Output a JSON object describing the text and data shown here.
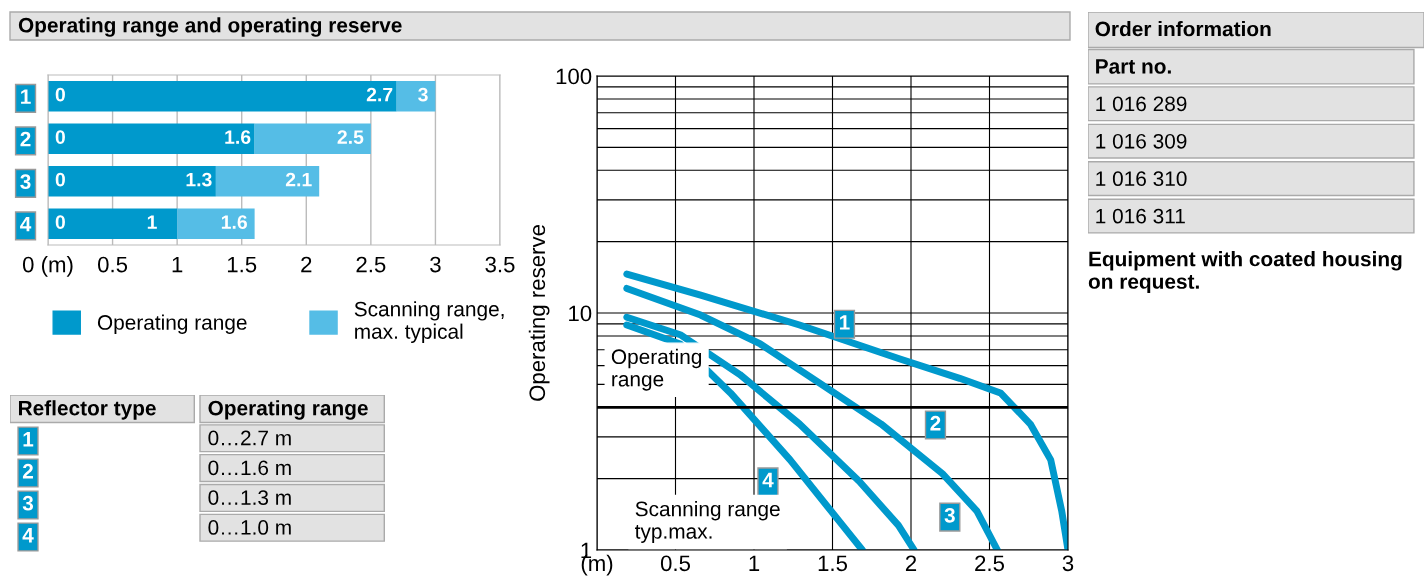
{
  "chart_data": [
    {
      "type": "bar",
      "title": "Operating range and operating reserve",
      "orientation": "horizontal",
      "stacked": true,
      "categories": [
        "1",
        "2",
        "3",
        "4"
      ],
      "series": [
        {
          "name": "Operating range",
          "color": "#0099cc",
          "values": [
            2.7,
            1.6,
            1.3,
            1.0
          ],
          "value_labels": [
            "2.7",
            "1.6",
            "1.3",
            "1"
          ]
        },
        {
          "name": "Scanning range,\nmax. typical",
          "color": "#55bde6",
          "values": [
            0.3,
            0.9,
            0.8,
            0.6
          ]
        }
      ],
      "annotations": [
        {
          "text": "0",
          "x": 0,
          "y": "1"
        },
        {
          "text": "0",
          "x": 0,
          "y": "2"
        },
        {
          "text": "0",
          "x": 0,
          "y": "3"
        },
        {
          "text": "0",
          "x": 0,
          "y": "4"
        },
        {
          "text": "3",
          "x": 3,
          "y": "1"
        },
        {
          "text": "2.5",
          "x": 2.5,
          "y": "2"
        },
        {
          "text": "2.1",
          "x": 2.1,
          "y": "3"
        },
        {
          "text": "1.6",
          "x": 1.6,
          "y": "4"
        }
      ],
      "xlim": [
        0,
        3.5
      ],
      "xticks": [
        {
          "value": 0,
          "label": "0 (m)"
        },
        0.5,
        1,
        1.5,
        2,
        2.5,
        3,
        3.5
      ],
      "grid": "x",
      "legend": "bottom"
    },
    {
      "type": "other",
      "categories": [
        "Reflector type",
        "Operating range"
      ],
      "cell_labels": [
        [
          null,
          "0…2.7 m"
        ],
        [
          null,
          "0…1.6 m"
        ],
        [
          null,
          "0…1.3 m"
        ],
        [
          null,
          "0…1.0 m"
        ]
      ]
    },
    {
      "type": "line",
      "ylabel": "Operating reserve",
      "log": "y",
      "xlim": [
        0,
        3
      ],
      "ylim": [
        1,
        100
      ],
      "xticks": [
        {
          "value": 0,
          "label": "(m)"
        },
        0.5,
        1,
        1.5,
        2,
        2.5,
        3
      ],
      "yticks": [
        1,
        {
          "value": 2,
          "label": null
        },
        {
          "value": 3,
          "label": null
        },
        {
          "value": 4,
          "label": null
        },
        {
          "value": 5,
          "label": null
        },
        {
          "value": 6,
          "label": null
        },
        {
          "value": 7,
          "label": null
        },
        {
          "value": 8,
          "label": null
        },
        {
          "value": 9,
          "label": null
        },
        10,
        {
          "value": 20,
          "label": null
        },
        {
          "value": 30,
          "label": null
        },
        {
          "value": 40,
          "label": null
        },
        {
          "value": 50,
          "label": null
        },
        {
          "value": 60,
          "label": null
        },
        {
          "value": 70,
          "label": null
        },
        {
          "value": 80,
          "label": null
        },
        {
          "value": 90,
          "label": null
        },
        100
      ],
      "grid": true,
      "line_style": "solid",
      "marker": "none",
      "legend": "bottom left",
      "series": [
        {
          "name": "1",
          "color": "#0099cc",
          "x": [
            0.19,
            0.66,
            1.29,
            1.93,
            2.31,
            2.57,
            2.76,
            2.89,
            2.96,
            3.0
          ],
          "values": [
            14.6,
            11.9,
            8.9,
            6.4,
            5.3,
            4.6,
            3.4,
            2.4,
            1.46,
            1.0
          ]
        },
        {
          "name": "2",
          "color": "#0099cc",
          "x": [
            0.19,
            0.66,
            1.04,
            1.43,
            1.81,
            2.2,
            2.42,
            2.55
          ],
          "values": [
            12.7,
            9.8,
            7.4,
            5.0,
            3.4,
            2.1,
            1.46,
            1.0
          ]
        },
        {
          "name": "3",
          "color": "#0099cc",
          "x": [
            0.19,
            0.53,
            0.91,
            1.29,
            1.67,
            1.92,
            2.02
          ],
          "values": [
            9.6,
            8.1,
            5.5,
            3.4,
            1.95,
            1.27,
            1.0
          ]
        },
        {
          "name": "4",
          "color": "#0099cc",
          "x": [
            0.19,
            0.53,
            0.85,
            1.23,
            1.54,
            1.69
          ],
          "values": [
            8.9,
            7.4,
            4.6,
            2.4,
            1.33,
            1.0
          ]
        }
      ],
      "ref_lines": [
        {
          "axis": "y",
          "value": 4,
          "label": "Operating\nrange",
          "color": "#000000"
        }
      ],
      "annotations": [
        "Scanning range\ntyp.max."
      ]
    },
    {
      "type": "other",
      "title": "Order information",
      "categories": [
        "Part no."
      ],
      "cell_labels": [
        [
          "1 016 289"
        ],
        [
          "1 016 309"
        ],
        [
          "1 016 310"
        ],
        [
          "1 016 311"
        ]
      ],
      "annotations": [
        "Equipment with coated housing on request."
      ]
    }
  ]
}
